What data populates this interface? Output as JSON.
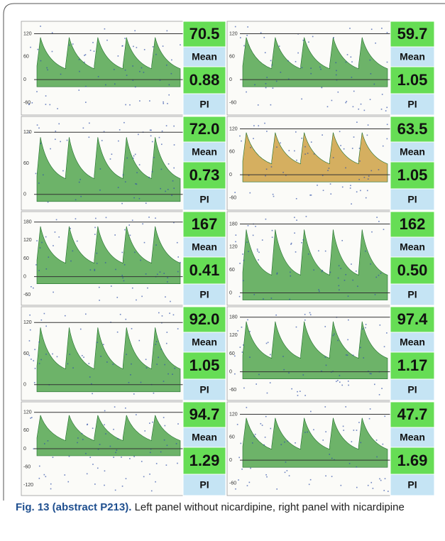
{
  "panels": [
    {
      "mean": "70.5",
      "mean_label": "Mean",
      "pi": "0.88",
      "pi_label": "PI",
      "yaxis": [
        "120",
        "60",
        "0",
        "-60"
      ]
    },
    {
      "mean": "59.7",
      "mean_label": "Mean",
      "pi": "1.05",
      "pi_label": "PI",
      "yaxis": [
        "120",
        "60",
        "0",
        "-60"
      ]
    },
    {
      "mean": "72.0",
      "mean_label": "Mean",
      "pi": "0.73",
      "pi_label": "PI",
      "yaxis": [
        "120",
        "60",
        "0"
      ]
    },
    {
      "mean": "63.5",
      "mean_label": "Mean",
      "pi": "1.05",
      "pi_label": "PI",
      "yaxis": [
        "120",
        "60",
        "0",
        "-60"
      ]
    },
    {
      "mean": "167",
      "mean_label": "Mean",
      "pi": "0.41",
      "pi_label": "PI",
      "yaxis": [
        "180",
        "120",
        "60",
        "0",
        "-60"
      ]
    },
    {
      "mean": "162",
      "mean_label": "Mean",
      "pi": "0.50",
      "pi_label": "PI",
      "yaxis": [
        "180",
        "120",
        "60",
        "0"
      ]
    },
    {
      "mean": "92.0",
      "mean_label": "Mean",
      "pi": "1.05",
      "pi_label": "PI",
      "yaxis": [
        "120",
        "60",
        "0"
      ]
    },
    {
      "mean": "97.4",
      "mean_label": "Mean",
      "pi": "1.17",
      "pi_label": "PI",
      "yaxis": [
        "180",
        "120",
        "60",
        "0",
        "-60"
      ]
    },
    {
      "mean": "94.7",
      "mean_label": "Mean",
      "pi": "1.29",
      "pi_label": "PI",
      "yaxis": [
        "120",
        "60",
        "0",
        "-60",
        "-120"
      ]
    },
    {
      "mean": "47.7",
      "mean_label": "Mean",
      "pi": "1.69",
      "pi_label": "PI",
      "yaxis": [
        "120",
        "60",
        "0",
        "-60"
      ]
    }
  ],
  "caption": {
    "label": "Fig. 13 (abstract P213).",
    "text": "Left panel without nicardipine, right panel with nicardipine"
  }
}
